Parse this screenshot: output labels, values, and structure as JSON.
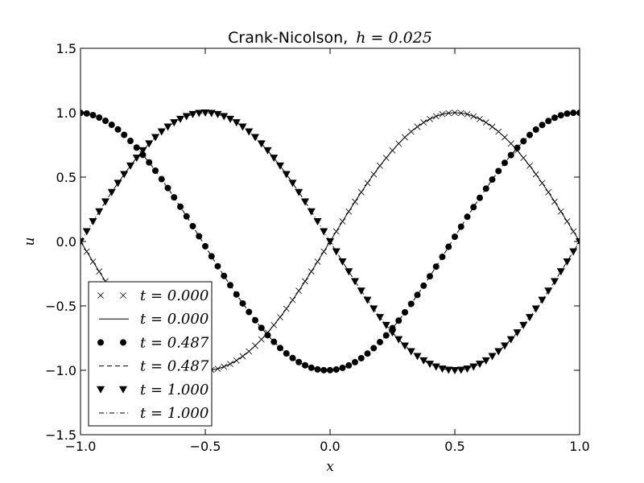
{
  "chart_data": {
    "type": "line",
    "title_prefix": "Crank-Nicolson,",
    "title_math": "h = 0.025",
    "xlabel": "x",
    "ylabel": "u",
    "xlim": [
      -1.0,
      1.0
    ],
    "ylim": [
      -1.5,
      1.5
    ],
    "x_ticks": [
      -1.0,
      -0.5,
      0.0,
      0.5,
      1.0
    ],
    "x_tick_labels": [
      "−1.0",
      "−0.5",
      "0.0",
      "0.5",
      "1.0"
    ],
    "y_ticks": [
      -1.5,
      -1.0,
      -0.5,
      0.0,
      0.5,
      1.0,
      1.5
    ],
    "y_tick_labels": [
      "−1.5",
      "−1.0",
      "−0.5",
      "0.0",
      "0.5",
      "1.0",
      "1.5"
    ],
    "grid": false,
    "legend_position": "lower-left",
    "x_step": 0.025,
    "series": [
      {
        "name": "t = 0.000",
        "style": "x-markers",
        "phase": 0.0,
        "values": [
          -0.0,
          -0.078,
          -0.156,
          -0.233,
          -0.309,
          -0.383,
          -0.454,
          -0.522,
          -0.588,
          -0.649,
          -0.707,
          -0.76,
          -0.809,
          -0.853,
          -0.891,
          -0.924,
          -0.951,
          -0.972,
          -0.988,
          -0.997,
          -1.0,
          -0.997,
          -0.988,
          -0.972,
          -0.951,
          -0.924,
          -0.891,
          -0.853,
          -0.809,
          -0.76,
          -0.707,
          -0.649,
          -0.588,
          -0.522,
          -0.454,
          -0.383,
          -0.309,
          -0.233,
          -0.156,
          -0.078,
          0.0,
          0.078,
          0.156,
          0.233,
          0.309,
          0.383,
          0.454,
          0.522,
          0.588,
          0.649,
          0.707,
          0.76,
          0.809,
          0.853,
          0.891,
          0.924,
          0.951,
          0.972,
          0.988,
          0.997,
          1.0,
          0.997,
          0.988,
          0.972,
          0.951,
          0.924,
          0.891,
          0.853,
          0.809,
          0.76,
          0.707,
          0.649,
          0.588,
          0.522,
          0.454,
          0.383,
          0.309,
          0.233,
          0.156,
          0.078,
          0.0
        ]
      },
      {
        "name": "t = 0.000",
        "style": "solid-line",
        "phase": 0.0,
        "values": [
          -0.0,
          -0.078,
          -0.156,
          -0.233,
          -0.309,
          -0.383,
          -0.454,
          -0.522,
          -0.588,
          -0.649,
          -0.707,
          -0.76,
          -0.809,
          -0.853,
          -0.891,
          -0.924,
          -0.951,
          -0.972,
          -0.988,
          -0.997,
          -1.0,
          -0.997,
          -0.988,
          -0.972,
          -0.951,
          -0.924,
          -0.891,
          -0.853,
          -0.809,
          -0.76,
          -0.707,
          -0.649,
          -0.588,
          -0.522,
          -0.454,
          -0.383,
          -0.309,
          -0.233,
          -0.156,
          -0.078,
          0.0,
          0.078,
          0.156,
          0.233,
          0.309,
          0.383,
          0.454,
          0.522,
          0.588,
          0.649,
          0.707,
          0.76,
          0.809,
          0.853,
          0.891,
          0.924,
          0.951,
          0.972,
          0.988,
          0.997,
          1.0,
          0.997,
          0.988,
          0.972,
          0.951,
          0.924,
          0.891,
          0.853,
          0.809,
          0.76,
          0.707,
          0.649,
          0.588,
          0.522,
          0.454,
          0.383,
          0.309,
          0.233,
          0.156,
          0.078,
          0.0
        ]
      },
      {
        "name": "t = 0.487",
        "style": "circle-markers",
        "phase": 0.487,
        "values": [
          0.999,
          0.994,
          0.981,
          0.962,
          0.937,
          0.906,
          0.87,
          0.828,
          0.781,
          0.729,
          0.673,
          0.614,
          0.55,
          0.484,
          0.415,
          0.343,
          0.27,
          0.195,
          0.119,
          0.041,
          -0.037,
          -0.115,
          -0.192,
          -0.267,
          -0.339,
          -0.411,
          -0.481,
          -0.547,
          -0.611,
          -0.671,
          -0.727,
          -0.779,
          -0.827,
          -0.869,
          -0.905,
          -0.936,
          -0.961,
          -0.98,
          -0.993,
          -0.999,
          -0.999,
          -0.994,
          -0.981,
          -0.962,
          -0.937,
          -0.906,
          -0.87,
          -0.828,
          -0.781,
          -0.729,
          -0.673,
          -0.614,
          -0.55,
          -0.484,
          -0.415,
          -0.343,
          -0.27,
          -0.195,
          -0.119,
          -0.041,
          0.037,
          0.115,
          0.192,
          0.267,
          0.339,
          0.411,
          0.481,
          0.547,
          0.611,
          0.671,
          0.727,
          0.779,
          0.827,
          0.869,
          0.905,
          0.936,
          0.961,
          0.98,
          0.993,
          0.999,
          0.999
        ]
      },
      {
        "name": "t = 0.487",
        "style": "dashed-line",
        "phase": 0.487,
        "values": [
          0.999,
          0.994,
          0.981,
          0.962,
          0.937,
          0.906,
          0.87,
          0.828,
          0.781,
          0.729,
          0.673,
          0.614,
          0.55,
          0.484,
          0.415,
          0.343,
          0.27,
          0.195,
          0.119,
          0.041,
          -0.037,
          -0.115,
          -0.192,
          -0.267,
          -0.339,
          -0.411,
          -0.481,
          -0.547,
          -0.611,
          -0.671,
          -0.727,
          -0.779,
          -0.827,
          -0.869,
          -0.905,
          -0.936,
          -0.961,
          -0.98,
          -0.993,
          -0.999,
          -0.999,
          -0.994,
          -0.981,
          -0.962,
          -0.937,
          -0.906,
          -0.87,
          -0.828,
          -0.781,
          -0.729,
          -0.673,
          -0.614,
          -0.55,
          -0.484,
          -0.415,
          -0.343,
          -0.27,
          -0.195,
          -0.119,
          -0.041,
          0.037,
          0.115,
          0.192,
          0.267,
          0.339,
          0.411,
          0.481,
          0.547,
          0.611,
          0.671,
          0.727,
          0.779,
          0.827,
          0.869,
          0.905,
          0.936,
          0.961,
          0.98,
          0.993,
          0.999,
          0.999
        ]
      },
      {
        "name": "t = 1.000",
        "style": "triangle-markers",
        "phase": 1.0,
        "values": [
          0.0,
          0.078,
          0.156,
          0.233,
          0.309,
          0.383,
          0.454,
          0.522,
          0.588,
          0.649,
          0.707,
          0.76,
          0.809,
          0.853,
          0.891,
          0.924,
          0.951,
          0.972,
          0.988,
          0.997,
          1.0,
          0.997,
          0.988,
          0.972,
          0.951,
          0.924,
          0.891,
          0.853,
          0.809,
          0.76,
          0.707,
          0.649,
          0.588,
          0.522,
          0.454,
          0.383,
          0.309,
          0.233,
          0.156,
          0.078,
          -0.0,
          -0.078,
          -0.156,
          -0.233,
          -0.309,
          -0.383,
          -0.454,
          -0.522,
          -0.588,
          -0.649,
          -0.707,
          -0.76,
          -0.809,
          -0.853,
          -0.891,
          -0.924,
          -0.951,
          -0.972,
          -0.988,
          -0.997,
          -1.0,
          -0.997,
          -0.988,
          -0.972,
          -0.951,
          -0.924,
          -0.891,
          -0.853,
          -0.809,
          -0.76,
          -0.707,
          -0.649,
          -0.588,
          -0.522,
          -0.454,
          -0.383,
          -0.309,
          -0.233,
          -0.156,
          -0.078,
          0.0
        ]
      },
      {
        "name": "t = 1.000",
        "style": "dashdot-line",
        "phase": 1.0,
        "values": [
          0.0,
          0.078,
          0.156,
          0.233,
          0.309,
          0.383,
          0.454,
          0.522,
          0.588,
          0.649,
          0.707,
          0.76,
          0.809,
          0.853,
          0.891,
          0.924,
          0.951,
          0.972,
          0.988,
          0.997,
          1.0,
          0.997,
          0.988,
          0.972,
          0.951,
          0.924,
          0.891,
          0.853,
          0.809,
          0.76,
          0.707,
          0.649,
          0.588,
          0.522,
          0.454,
          0.383,
          0.309,
          0.233,
          0.156,
          0.078,
          -0.0,
          -0.078,
          -0.156,
          -0.233,
          -0.309,
          -0.383,
          -0.454,
          -0.522,
          -0.588,
          -0.649,
          -0.707,
          -0.76,
          -0.809,
          -0.853,
          -0.891,
          -0.924,
          -0.951,
          -0.972,
          -0.988,
          -0.997,
          -1.0,
          -0.997,
          -0.988,
          -0.972,
          -0.951,
          -0.924,
          -0.891,
          -0.853,
          -0.809,
          -0.76,
          -0.707,
          -0.649,
          -0.588,
          -0.522,
          -0.454,
          -0.383,
          -0.309,
          -0.233,
          -0.156,
          -0.078,
          0.0
        ]
      }
    ]
  },
  "colors": {
    "ink": "#000000",
    "background": "#ffffff"
  }
}
